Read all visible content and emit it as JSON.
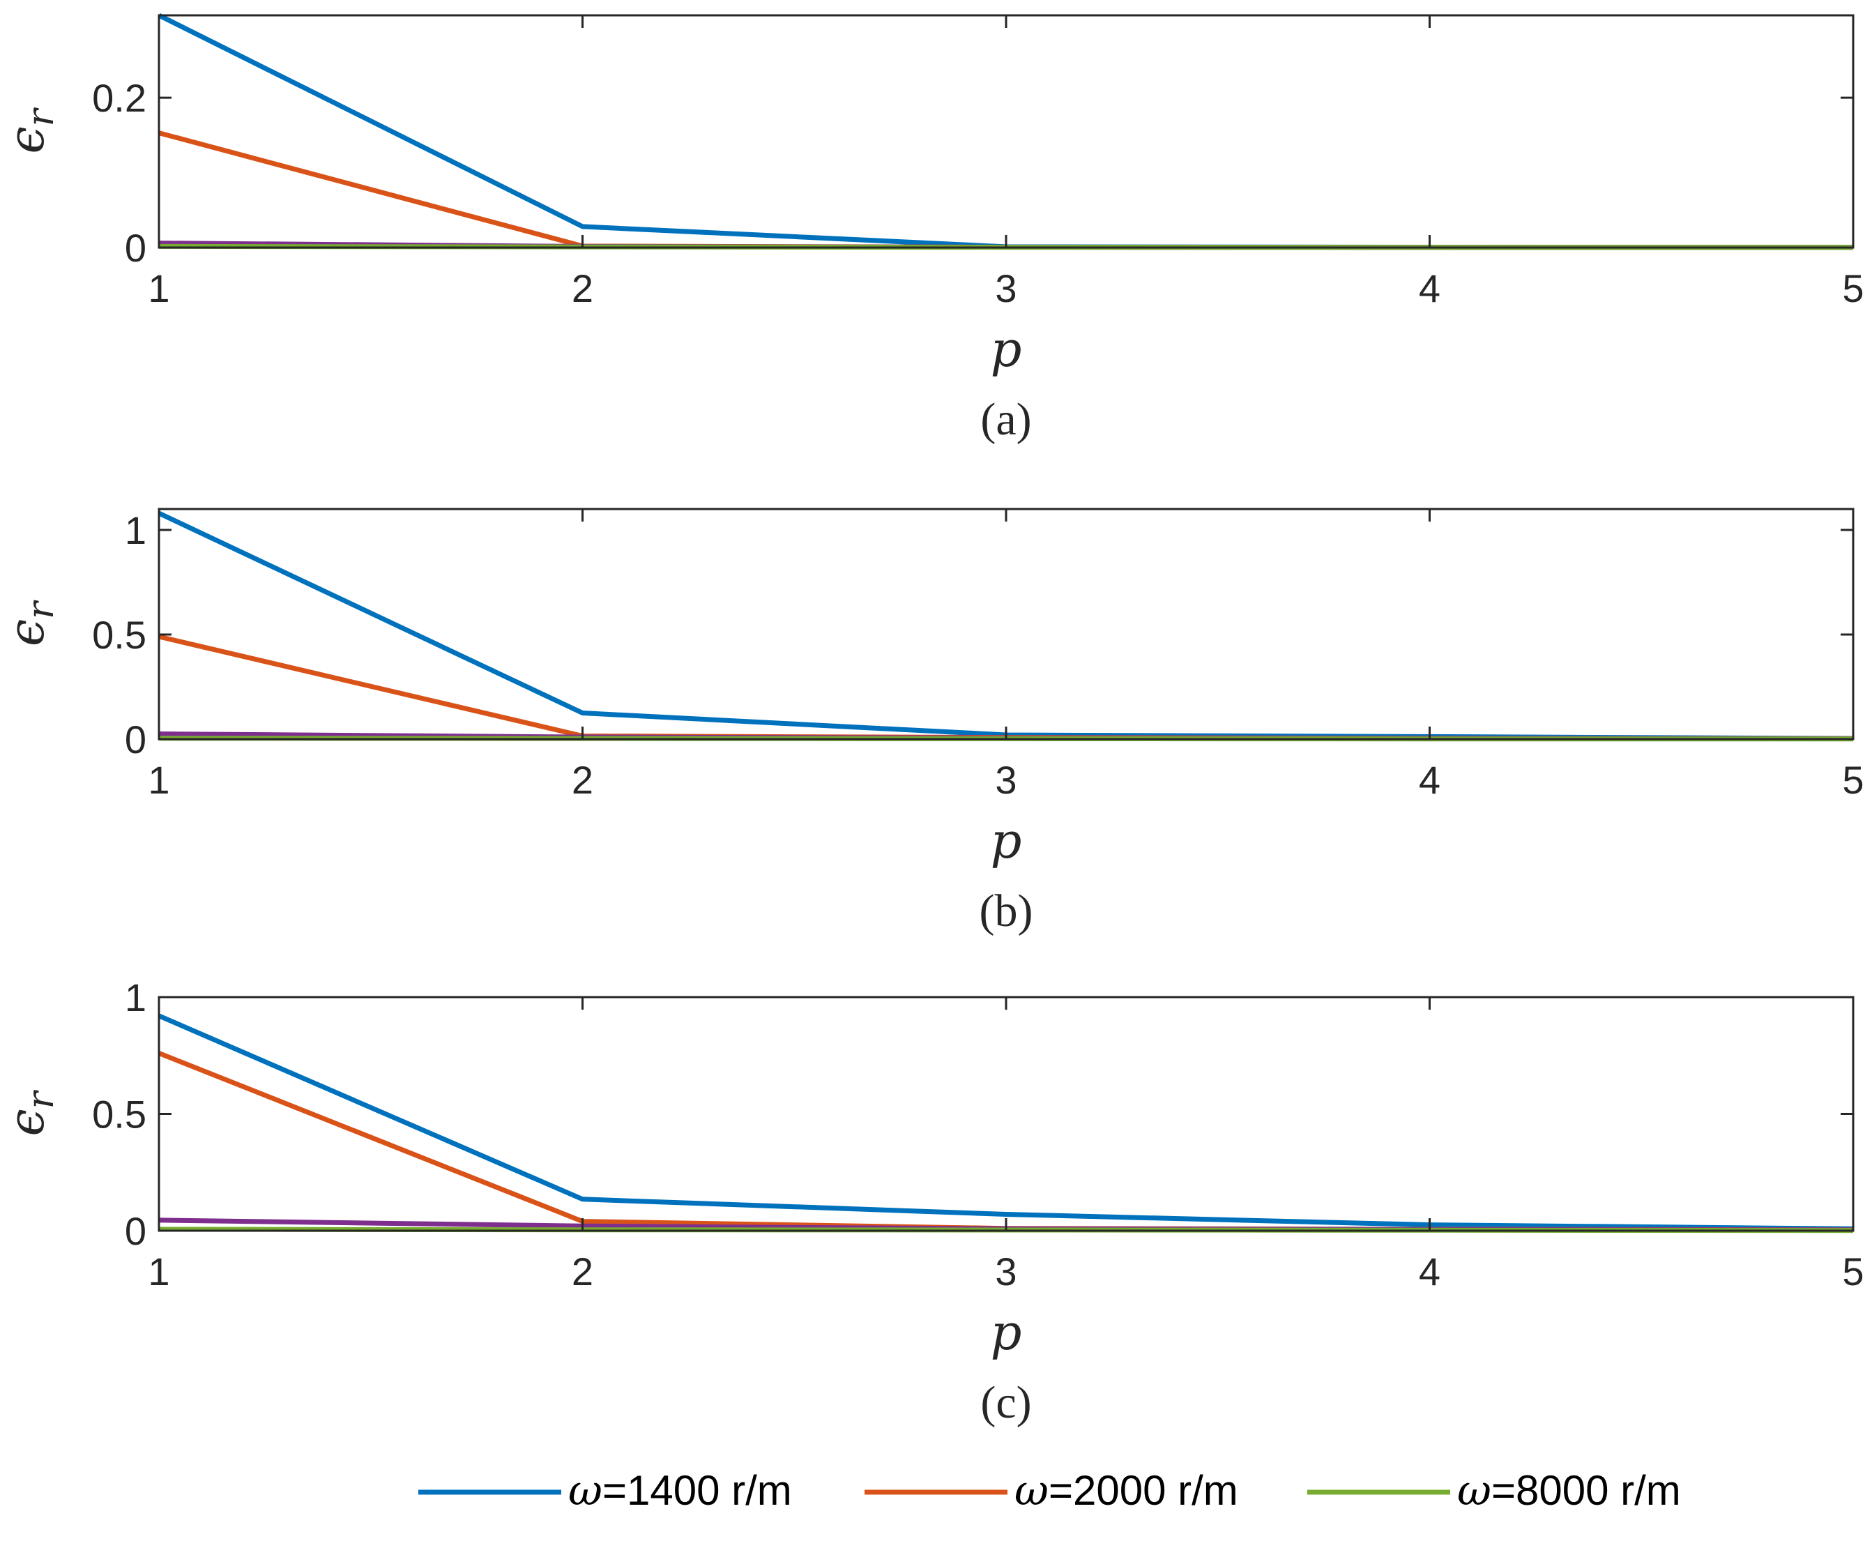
{
  "chart_data": [
    {
      "type": "line",
      "panel_label": "(a)",
      "xlabel": "p",
      "ylabel_main": "ϵ",
      "ylabel_sub": "r",
      "xlim": [
        1,
        5
      ],
      "ylim": [
        0,
        0.31
      ],
      "x_ticks": [
        1,
        2,
        3,
        4,
        5
      ],
      "y_ticks": [
        0,
        0.2
      ],
      "y_tick_labels": [
        "0",
        "0.2"
      ],
      "x": [
        1,
        2,
        3,
        4,
        5
      ],
      "series": [
        {
          "name": "ω=1400 r/m",
          "color": "#0072BD",
          "values": [
            0.31,
            0.028,
            0.001,
            0.0005,
            0.0003
          ]
        },
        {
          "name": "ω=2000 r/m",
          "color": "#D95319",
          "values": [
            0.153,
            0.002,
            0.0005,
            0.0003,
            0.0002
          ]
        },
        {
          "name": "",
          "color": "#7E2F8E",
          "values": [
            0.006,
            0.0015,
            0.0005,
            0.0003,
            0.0002
          ]
        },
        {
          "name": "ω=8000 r/m",
          "color": "#77AC30",
          "values": [
            0.0015,
            0.0008,
            0.0004,
            0.0002,
            0.0001
          ]
        }
      ]
    },
    {
      "type": "line",
      "panel_label": "(b)",
      "xlabel": "p",
      "ylabel_main": "ϵ",
      "ylabel_sub": "r",
      "xlim": [
        1,
        5
      ],
      "ylim": [
        0,
        1.1
      ],
      "x_ticks": [
        1,
        2,
        3,
        4,
        5
      ],
      "y_ticks": [
        0,
        0.5,
        1
      ],
      "y_tick_labels": [
        "0",
        "0.5",
        "1"
      ],
      "x": [
        1,
        2,
        3,
        4,
        5
      ],
      "series": [
        {
          "name": "ω=1400 r/m",
          "color": "#0072BD",
          "values": [
            1.08,
            0.125,
            0.02,
            0.012,
            0.003
          ]
        },
        {
          "name": "ω=2000 r/m",
          "color": "#D95319",
          "values": [
            0.49,
            0.015,
            0.008,
            0.004,
            0.002
          ]
        },
        {
          "name": "",
          "color": "#7E2F8E",
          "values": [
            0.025,
            0.01,
            0.005,
            0.003,
            0.002
          ]
        },
        {
          "name": "ω=8000 r/m",
          "color": "#77AC30",
          "values": [
            0.004,
            0.003,
            0.002,
            0.001,
            0.001
          ]
        }
      ]
    },
    {
      "type": "line",
      "panel_label": "(c)",
      "xlabel": "p",
      "ylabel_main": "ϵ",
      "ylabel_sub": "r",
      "xlim": [
        1,
        5
      ],
      "ylim": [
        0,
        1
      ],
      "x_ticks": [
        1,
        2,
        3,
        4,
        5
      ],
      "y_ticks": [
        0,
        0.5,
        1
      ],
      "y_tick_labels": [
        "0",
        "0.5",
        "1"
      ],
      "x": [
        1,
        2,
        3,
        4,
        5
      ],
      "series": [
        {
          "name": "ω=1400 r/m",
          "color": "#0072BD",
          "values": [
            0.92,
            0.135,
            0.07,
            0.025,
            0.008
          ]
        },
        {
          "name": "ω=2000 r/m",
          "color": "#D95319",
          "values": [
            0.76,
            0.04,
            0.01,
            0.006,
            0.004
          ]
        },
        {
          "name": "",
          "color": "#7E2F8E",
          "values": [
            0.045,
            0.02,
            0.008,
            0.005,
            0.003
          ]
        },
        {
          "name": "ω=8000 r/m",
          "color": "#77AC30",
          "values": [
            0.006,
            0.004,
            0.003,
            0.002,
            0.001
          ]
        }
      ]
    }
  ],
  "legend": {
    "position": "bottom-center",
    "items": [
      {
        "symbol": "ω",
        "rest": "=1400 r/m",
        "color": "#0072BD"
      },
      {
        "symbol": "ω",
        "rest": "=2000 r/m",
        "color": "#D95319"
      },
      {
        "symbol": "ω",
        "rest": "=8000 r/m",
        "color": "#77AC30"
      }
    ]
  }
}
